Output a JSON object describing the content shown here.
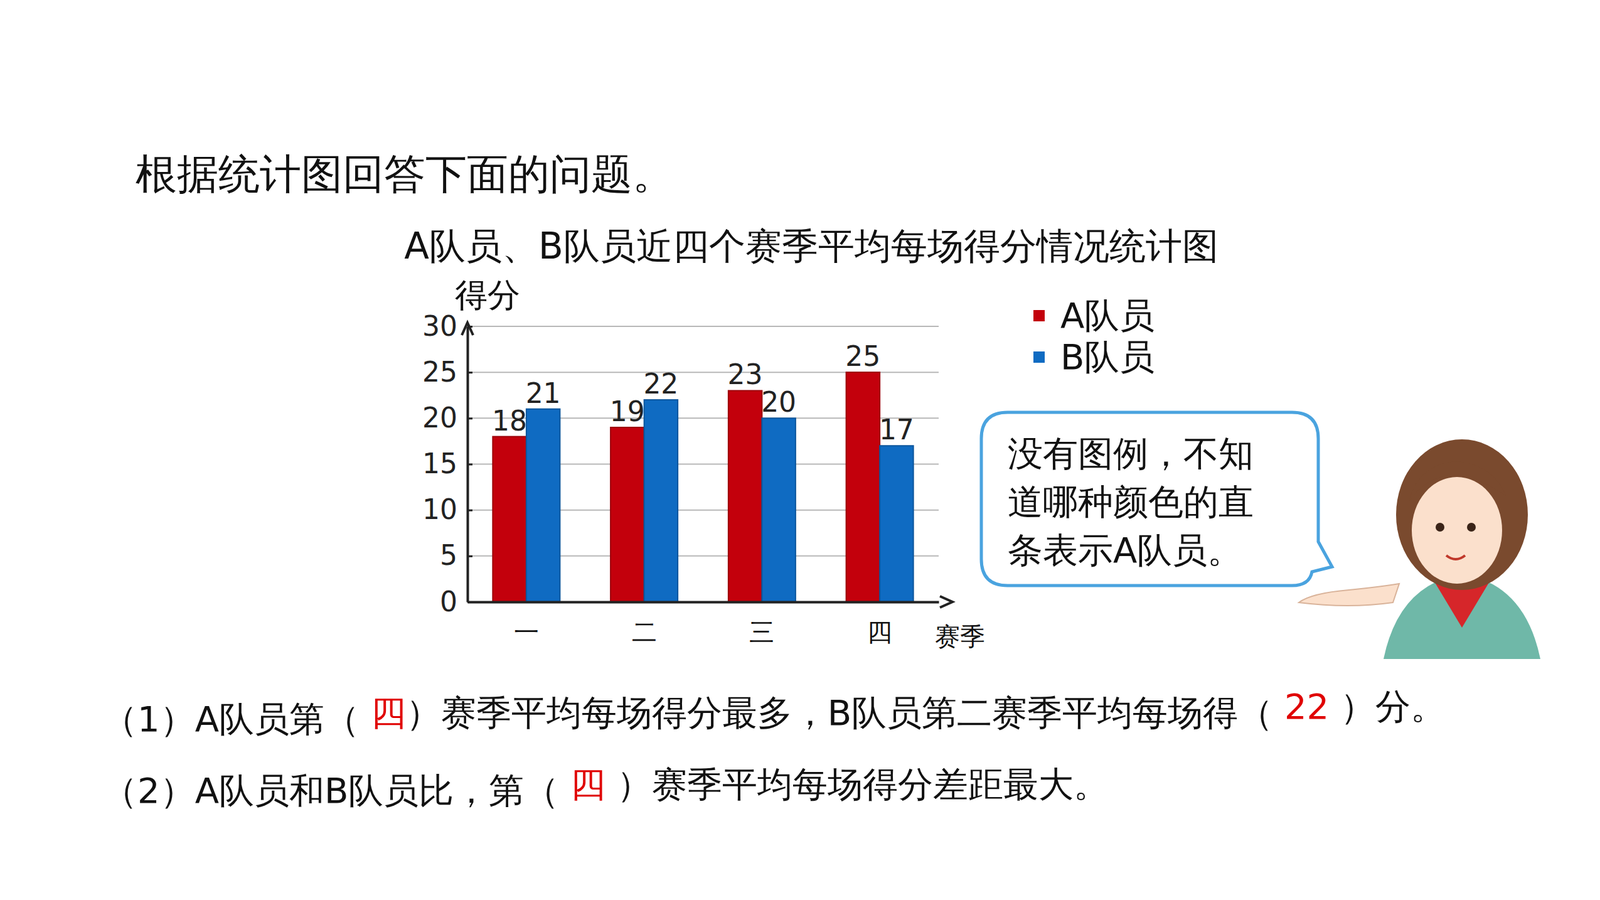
{
  "heading": "根据统计图回答下面的问题。",
  "chart_data": {
    "type": "bar",
    "title": "A队员、B队员近四个赛季平均每场得分情况统计图",
    "xlabel": "赛季",
    "ylabel": "得分",
    "categories": [
      "一",
      "二",
      "三",
      "四"
    ],
    "series": [
      {
        "name": "A队员",
        "color": "#c3000c",
        "values": [
          18,
          19,
          23,
          25
        ]
      },
      {
        "name": "B队员",
        "color": "#0f6bc2",
        "values": [
          21,
          22,
          20,
          17
        ]
      }
    ],
    "ylim": [
      0,
      30
    ],
    "yticks": [
      0,
      5,
      10,
      15,
      20,
      25,
      30
    ],
    "grid": true,
    "data_labels": true,
    "legend": "upper right"
  },
  "speech_bubble": {
    "lines": [
      "没有图例，不知",
      "道哪种颜色的直",
      "条表示A队员。"
    ]
  },
  "questions": [
    {
      "parts": [
        "（1）A队员第（ ",
        "）赛季平均每场得分最多，B队员第二赛季平均每场得（ ",
        " ）分。"
      ],
      "answers": [
        "四",
        "22"
      ]
    },
    {
      "parts": [
        "（2）A队员和B队员比，第（ ",
        " ）赛季平均每场得分差距最大。"
      ],
      "answers": [
        "四"
      ]
    }
  ]
}
